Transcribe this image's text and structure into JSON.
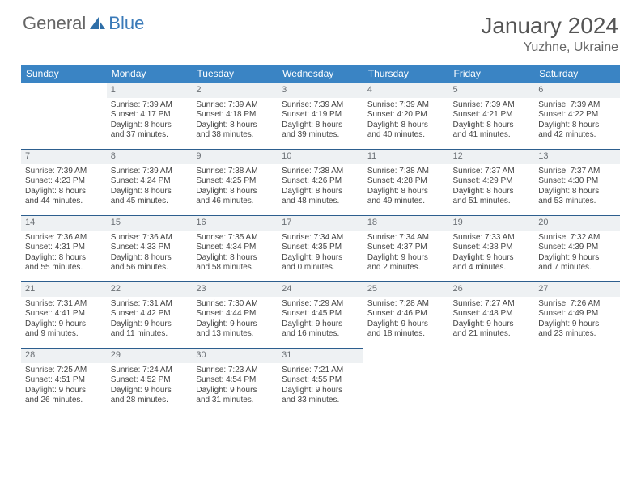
{
  "logo": {
    "text1": "General",
    "text2": "Blue"
  },
  "title": "January 2024",
  "location": "Yuzhne, Ukraine",
  "colors": {
    "header_bg": "#3a84c4",
    "header_text": "#ffffff",
    "daynum_bg": "#eef1f3",
    "daynum_border": "#2d5e8e",
    "text": "#444444",
    "logo_blue": "#3a7ab8"
  },
  "weekdays": [
    "Sunday",
    "Monday",
    "Tuesday",
    "Wednesday",
    "Thursday",
    "Friday",
    "Saturday"
  ],
  "weeks": [
    [
      null,
      {
        "n": "1",
        "sr": "Sunrise: 7:39 AM",
        "ss": "Sunset: 4:17 PM",
        "d1": "Daylight: 8 hours",
        "d2": "and 37 minutes."
      },
      {
        "n": "2",
        "sr": "Sunrise: 7:39 AM",
        "ss": "Sunset: 4:18 PM",
        "d1": "Daylight: 8 hours",
        "d2": "and 38 minutes."
      },
      {
        "n": "3",
        "sr": "Sunrise: 7:39 AM",
        "ss": "Sunset: 4:19 PM",
        "d1": "Daylight: 8 hours",
        "d2": "and 39 minutes."
      },
      {
        "n": "4",
        "sr": "Sunrise: 7:39 AM",
        "ss": "Sunset: 4:20 PM",
        "d1": "Daylight: 8 hours",
        "d2": "and 40 minutes."
      },
      {
        "n": "5",
        "sr": "Sunrise: 7:39 AM",
        "ss": "Sunset: 4:21 PM",
        "d1": "Daylight: 8 hours",
        "d2": "and 41 minutes."
      },
      {
        "n": "6",
        "sr": "Sunrise: 7:39 AM",
        "ss": "Sunset: 4:22 PM",
        "d1": "Daylight: 8 hours",
        "d2": "and 42 minutes."
      }
    ],
    [
      {
        "n": "7",
        "sr": "Sunrise: 7:39 AM",
        "ss": "Sunset: 4:23 PM",
        "d1": "Daylight: 8 hours",
        "d2": "and 44 minutes."
      },
      {
        "n": "8",
        "sr": "Sunrise: 7:39 AM",
        "ss": "Sunset: 4:24 PM",
        "d1": "Daylight: 8 hours",
        "d2": "and 45 minutes."
      },
      {
        "n": "9",
        "sr": "Sunrise: 7:38 AM",
        "ss": "Sunset: 4:25 PM",
        "d1": "Daylight: 8 hours",
        "d2": "and 46 minutes."
      },
      {
        "n": "10",
        "sr": "Sunrise: 7:38 AM",
        "ss": "Sunset: 4:26 PM",
        "d1": "Daylight: 8 hours",
        "d2": "and 48 minutes."
      },
      {
        "n": "11",
        "sr": "Sunrise: 7:38 AM",
        "ss": "Sunset: 4:28 PM",
        "d1": "Daylight: 8 hours",
        "d2": "and 49 minutes."
      },
      {
        "n": "12",
        "sr": "Sunrise: 7:37 AM",
        "ss": "Sunset: 4:29 PM",
        "d1": "Daylight: 8 hours",
        "d2": "and 51 minutes."
      },
      {
        "n": "13",
        "sr": "Sunrise: 7:37 AM",
        "ss": "Sunset: 4:30 PM",
        "d1": "Daylight: 8 hours",
        "d2": "and 53 minutes."
      }
    ],
    [
      {
        "n": "14",
        "sr": "Sunrise: 7:36 AM",
        "ss": "Sunset: 4:31 PM",
        "d1": "Daylight: 8 hours",
        "d2": "and 55 minutes."
      },
      {
        "n": "15",
        "sr": "Sunrise: 7:36 AM",
        "ss": "Sunset: 4:33 PM",
        "d1": "Daylight: 8 hours",
        "d2": "and 56 minutes."
      },
      {
        "n": "16",
        "sr": "Sunrise: 7:35 AM",
        "ss": "Sunset: 4:34 PM",
        "d1": "Daylight: 8 hours",
        "d2": "and 58 minutes."
      },
      {
        "n": "17",
        "sr": "Sunrise: 7:34 AM",
        "ss": "Sunset: 4:35 PM",
        "d1": "Daylight: 9 hours",
        "d2": "and 0 minutes."
      },
      {
        "n": "18",
        "sr": "Sunrise: 7:34 AM",
        "ss": "Sunset: 4:37 PM",
        "d1": "Daylight: 9 hours",
        "d2": "and 2 minutes."
      },
      {
        "n": "19",
        "sr": "Sunrise: 7:33 AM",
        "ss": "Sunset: 4:38 PM",
        "d1": "Daylight: 9 hours",
        "d2": "and 4 minutes."
      },
      {
        "n": "20",
        "sr": "Sunrise: 7:32 AM",
        "ss": "Sunset: 4:39 PM",
        "d1": "Daylight: 9 hours",
        "d2": "and 7 minutes."
      }
    ],
    [
      {
        "n": "21",
        "sr": "Sunrise: 7:31 AM",
        "ss": "Sunset: 4:41 PM",
        "d1": "Daylight: 9 hours",
        "d2": "and 9 minutes."
      },
      {
        "n": "22",
        "sr": "Sunrise: 7:31 AM",
        "ss": "Sunset: 4:42 PM",
        "d1": "Daylight: 9 hours",
        "d2": "and 11 minutes."
      },
      {
        "n": "23",
        "sr": "Sunrise: 7:30 AM",
        "ss": "Sunset: 4:44 PM",
        "d1": "Daylight: 9 hours",
        "d2": "and 13 minutes."
      },
      {
        "n": "24",
        "sr": "Sunrise: 7:29 AM",
        "ss": "Sunset: 4:45 PM",
        "d1": "Daylight: 9 hours",
        "d2": "and 16 minutes."
      },
      {
        "n": "25",
        "sr": "Sunrise: 7:28 AM",
        "ss": "Sunset: 4:46 PM",
        "d1": "Daylight: 9 hours",
        "d2": "and 18 minutes."
      },
      {
        "n": "26",
        "sr": "Sunrise: 7:27 AM",
        "ss": "Sunset: 4:48 PM",
        "d1": "Daylight: 9 hours",
        "d2": "and 21 minutes."
      },
      {
        "n": "27",
        "sr": "Sunrise: 7:26 AM",
        "ss": "Sunset: 4:49 PM",
        "d1": "Daylight: 9 hours",
        "d2": "and 23 minutes."
      }
    ],
    [
      {
        "n": "28",
        "sr": "Sunrise: 7:25 AM",
        "ss": "Sunset: 4:51 PM",
        "d1": "Daylight: 9 hours",
        "d2": "and 26 minutes."
      },
      {
        "n": "29",
        "sr": "Sunrise: 7:24 AM",
        "ss": "Sunset: 4:52 PM",
        "d1": "Daylight: 9 hours",
        "d2": "and 28 minutes."
      },
      {
        "n": "30",
        "sr": "Sunrise: 7:23 AM",
        "ss": "Sunset: 4:54 PM",
        "d1": "Daylight: 9 hours",
        "d2": "and 31 minutes."
      },
      {
        "n": "31",
        "sr": "Sunrise: 7:21 AM",
        "ss": "Sunset: 4:55 PM",
        "d1": "Daylight: 9 hours",
        "d2": "and 33 minutes."
      },
      null,
      null,
      null
    ]
  ]
}
